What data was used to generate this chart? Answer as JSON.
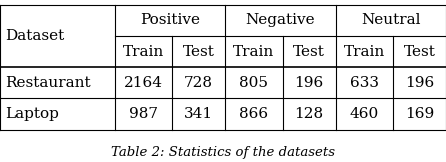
{
  "col_groups": [
    {
      "label": "Positive",
      "span": 2
    },
    {
      "label": "Negative",
      "span": 2
    },
    {
      "label": "Neutral",
      "span": 2
    }
  ],
  "sub_headers": [
    "Train",
    "Test",
    "Train",
    "Test",
    "Train",
    "Test"
  ],
  "row_header": "Dataset",
  "rows": [
    {
      "name": "Restaurant",
      "values": [
        "2164",
        "728",
        "805",
        "196",
        "633",
        "196"
      ]
    },
    {
      "name": "Laptop",
      "values": [
        "987",
        "341",
        "866",
        "128",
        "460",
        "169"
      ]
    }
  ],
  "col_widths": [
    1.3,
    0.65,
    0.6,
    0.65,
    0.6,
    0.65,
    0.6
  ],
  "background_color": "#ffffff",
  "line_color": "#000000",
  "text_color": "#000000",
  "font_size": 11,
  "caption_font_size": 9.5,
  "caption": "Table 2: Statistics of the datasets"
}
